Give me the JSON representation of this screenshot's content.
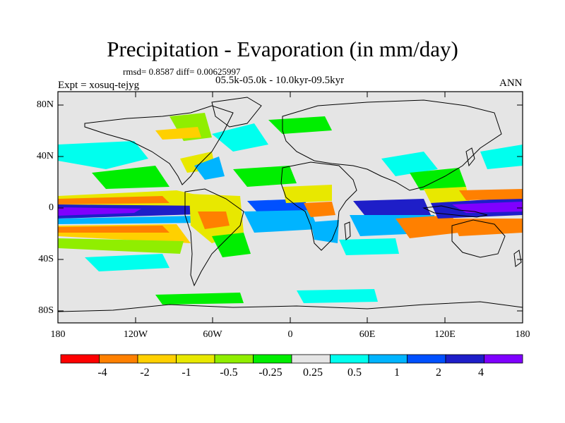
{
  "title": "Precipitation - Evaporation (in mm/day)",
  "stats": "rmsd= 0.8587 diff= 0.00625997",
  "experiment": "Expt = xosuq-tejyg",
  "period": "05.5k-05.0k - 10.0kyr-09.5kyr",
  "season": "ANN",
  "lat_labels": [
    "80N",
    "40N",
    "0",
    "40S",
    "80S"
  ],
  "lon_labels": [
    "180",
    "120W",
    "60W",
    "0",
    "60E",
    "120E",
    "180"
  ],
  "colorbar": {
    "labels": [
      "-4",
      "-2",
      "-1",
      "-0.5",
      "-0.25",
      "0.25",
      "0.5",
      "1",
      "2",
      "4"
    ],
    "colors": [
      "#ff0000",
      "#ff8000",
      "#ffd000",
      "#e8e800",
      "#90ee00",
      "#00ee00",
      "#e5e5e5",
      "#00ffee",
      "#00b4ff",
      "#0050ff",
      "#1e1ec8",
      "#7f00ff"
    ]
  },
  "map_colors": {
    "background": "#e5e5e5",
    "land_outline": "#000000"
  }
}
